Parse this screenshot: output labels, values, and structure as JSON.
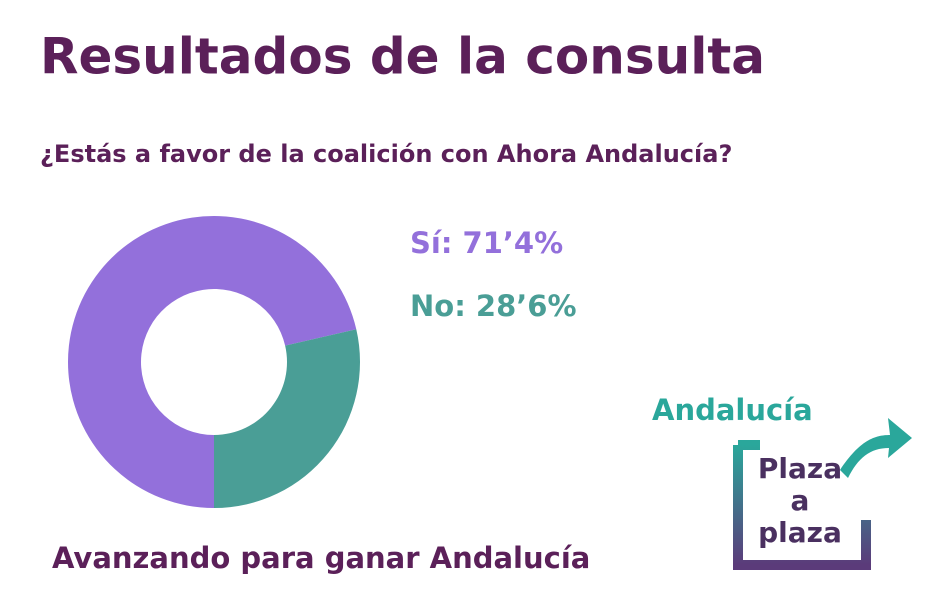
{
  "chart_data": {
    "type": "pie",
    "title": "Resultados de la consulta",
    "subtitle": "¿Estás a favor de la coalición con Ahora Andalucía?",
    "values": [
      71.4,
      28.6
    ],
    "value_labels": [
      "Sí: 71’4%",
      "No: 28’6%"
    ],
    "colors": [
      "#9370db",
      "#4a9e96"
    ],
    "donut": true,
    "footer": "Avanzando para ganar Andalucía"
  },
  "logo": {
    "title": "Andalucía",
    "lines": [
      "Plaza",
      "a",
      "plaza"
    ]
  }
}
